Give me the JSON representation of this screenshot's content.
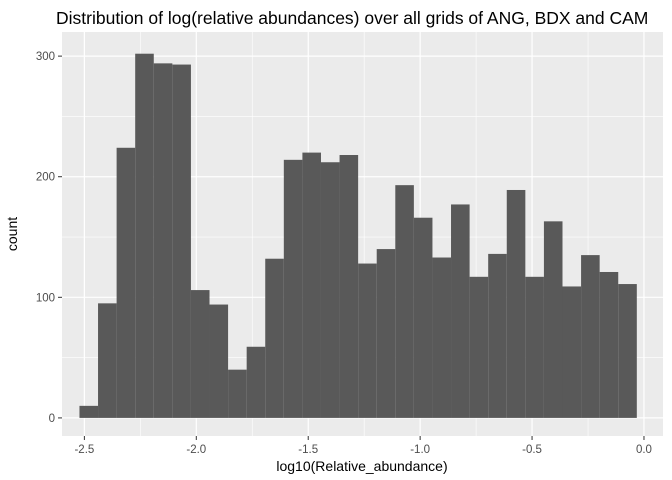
{
  "chart_data": {
    "type": "bar",
    "title": "Distribution of log(relative abundances) over all grids of ANG, BDX and CAM",
    "xlabel": "log10(Relative_abundance)",
    "ylabel": "count",
    "xlim": [
      -2.6,
      0.085
    ],
    "ylim": [
      -15,
      320
    ],
    "x_ticks": [
      -2.5,
      -2.0,
      -1.5,
      -1.0,
      -0.5,
      0.0
    ],
    "x_tick_labels": [
      "-2.5",
      "-2.0",
      "-1.5",
      "-1.0",
      "-0.5",
      "0.0"
    ],
    "y_ticks": [
      0,
      100,
      200,
      300
    ],
    "y_tick_labels": [
      "0",
      "100",
      "200",
      "300"
    ],
    "grid": true,
    "bins": [
      {
        "x0": -2.522,
        "x1": -2.439,
        "value": 10
      },
      {
        "x0": -2.439,
        "x1": -2.356,
        "value": 95
      },
      {
        "x0": -2.356,
        "x1": -2.273,
        "value": 224
      },
      {
        "x0": -2.273,
        "x1": -2.19,
        "value": 302
      },
      {
        "x0": -2.19,
        "x1": -2.107,
        "value": 294
      },
      {
        "x0": -2.107,
        "x1": -2.024,
        "value": 293
      },
      {
        "x0": -2.024,
        "x1": -1.941,
        "value": 106
      },
      {
        "x0": -1.941,
        "x1": -1.858,
        "value": 94
      },
      {
        "x0": -1.858,
        "x1": -1.775,
        "value": 40
      },
      {
        "x0": -1.775,
        "x1": -1.692,
        "value": 59
      },
      {
        "x0": -1.692,
        "x1": -1.609,
        "value": 132
      },
      {
        "x0": -1.609,
        "x1": -1.526,
        "value": 214
      },
      {
        "x0": -1.526,
        "x1": -1.443,
        "value": 220
      },
      {
        "x0": -1.443,
        "x1": -1.36,
        "value": 212
      },
      {
        "x0": -1.36,
        "x1": -1.277,
        "value": 218
      },
      {
        "x0": -1.277,
        "x1": -1.194,
        "value": 128
      },
      {
        "x0": -1.194,
        "x1": -1.111,
        "value": 140
      },
      {
        "x0": -1.111,
        "x1": -1.028,
        "value": 193
      },
      {
        "x0": -1.028,
        "x1": -0.945,
        "value": 166
      },
      {
        "x0": -0.945,
        "x1": -0.862,
        "value": 133
      },
      {
        "x0": -0.862,
        "x1": -0.779,
        "value": 177
      },
      {
        "x0": -0.779,
        "x1": -0.696,
        "value": 117
      },
      {
        "x0": -0.696,
        "x1": -0.613,
        "value": 136
      },
      {
        "x0": -0.613,
        "x1": -0.53,
        "value": 189
      },
      {
        "x0": -0.53,
        "x1": -0.447,
        "value": 117
      },
      {
        "x0": -0.447,
        "x1": -0.364,
        "value": 163
      },
      {
        "x0": -0.364,
        "x1": -0.281,
        "value": 109
      },
      {
        "x0": -0.281,
        "x1": -0.198,
        "value": 135
      },
      {
        "x0": -0.198,
        "x1": -0.115,
        "value": 121
      },
      {
        "x0": -0.115,
        "x1": -0.032,
        "value": 111
      }
    ],
    "colors": {
      "panel": "#ebebeb",
      "grid_major": "#ffffff",
      "bar": "#595959",
      "tick": "#333333"
    }
  }
}
